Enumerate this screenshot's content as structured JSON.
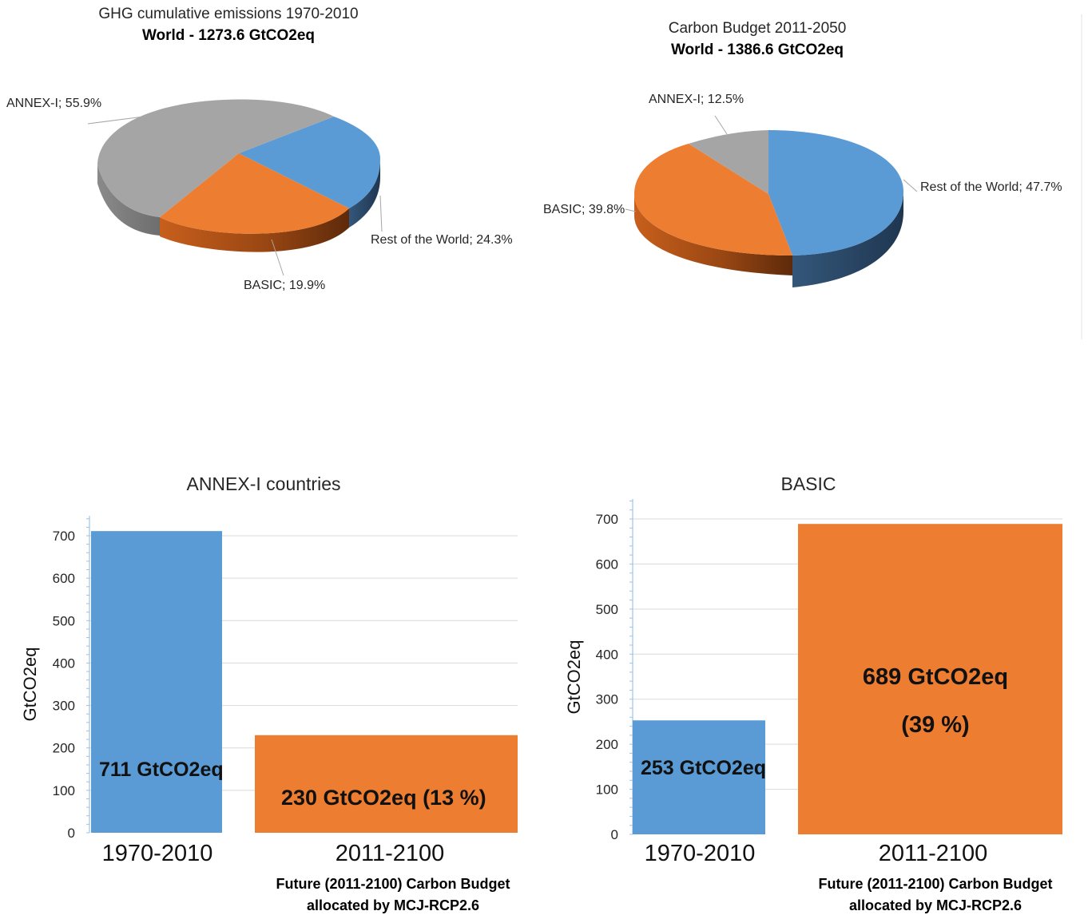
{
  "chart_data": [
    {
      "type": "pie",
      "title": "GHG cumulative emissions 1970-2010",
      "subtitle": "World - 1273.6 GtCO2eq",
      "slices": [
        {
          "name": "ANNEX-I",
          "value": 55.9,
          "label": "ANNEX-I; 55.9%",
          "color": "#A5A5A5"
        },
        {
          "name": "Rest of the World",
          "value": 24.3,
          "label": "Rest of the World; 24.3%",
          "color": "#5B9BD5"
        },
        {
          "name": "BASIC",
          "value": 19.9,
          "label": "BASIC; 19.9%",
          "color": "#ED7D31"
        }
      ]
    },
    {
      "type": "pie",
      "title": "Carbon Budget 2011-2050",
      "subtitle": "World - 1386.6 GtCO2eq",
      "slices": [
        {
          "name": "ANNEX-I",
          "value": 12.5,
          "label": "ANNEX-I; 12.5%",
          "color": "#A5A5A5"
        },
        {
          "name": "Rest of the World",
          "value": 47.7,
          "label": "Rest of the World; 47.7%",
          "color": "#5B9BD5"
        },
        {
          "name": "BASIC",
          "value": 39.8,
          "label": "BASIC; 39.8%",
          "color": "#ED7D31"
        }
      ]
    },
    {
      "type": "bar",
      "title": "ANNEX-I countries",
      "ylabel": "GtCO2eq",
      "ylim": [
        0,
        700
      ],
      "yticks": [
        "0",
        "100",
        "200",
        "300",
        "400",
        "500",
        "600",
        "700"
      ],
      "categories": [
        "1970-2010",
        "2011-2100"
      ],
      "values": [
        711,
        230
      ],
      "colors": [
        "#5B9BD5",
        "#ED7D31"
      ],
      "data_labels": [
        "711 GtCO2eq",
        "230 GtCO2eq (13 %)"
      ],
      "note_line1": "Future (2011-2100) Carbon Budget",
      "note_line2": "allocated by MCJ-RCP2.6"
    },
    {
      "type": "bar",
      "title": "BASIC",
      "ylabel": "GtCO2eq",
      "ylim": [
        0,
        700
      ],
      "yticks": [
        "0",
        "100",
        "200",
        "300",
        "400",
        "500",
        "600",
        "700"
      ],
      "categories": [
        "1970-2010",
        "2011-2100"
      ],
      "values": [
        253,
        689
      ],
      "colors": [
        "#5B9BD5",
        "#ED7D31"
      ],
      "data_labels": [
        "253 GtCO2eq",
        "689 GtCO2eq"
      ],
      "data_label_extra": "(39 %)",
      "note_line1": "Future (2011-2100) Carbon Budget",
      "note_line2": "allocated by MCJ-RCP2.6"
    }
  ]
}
